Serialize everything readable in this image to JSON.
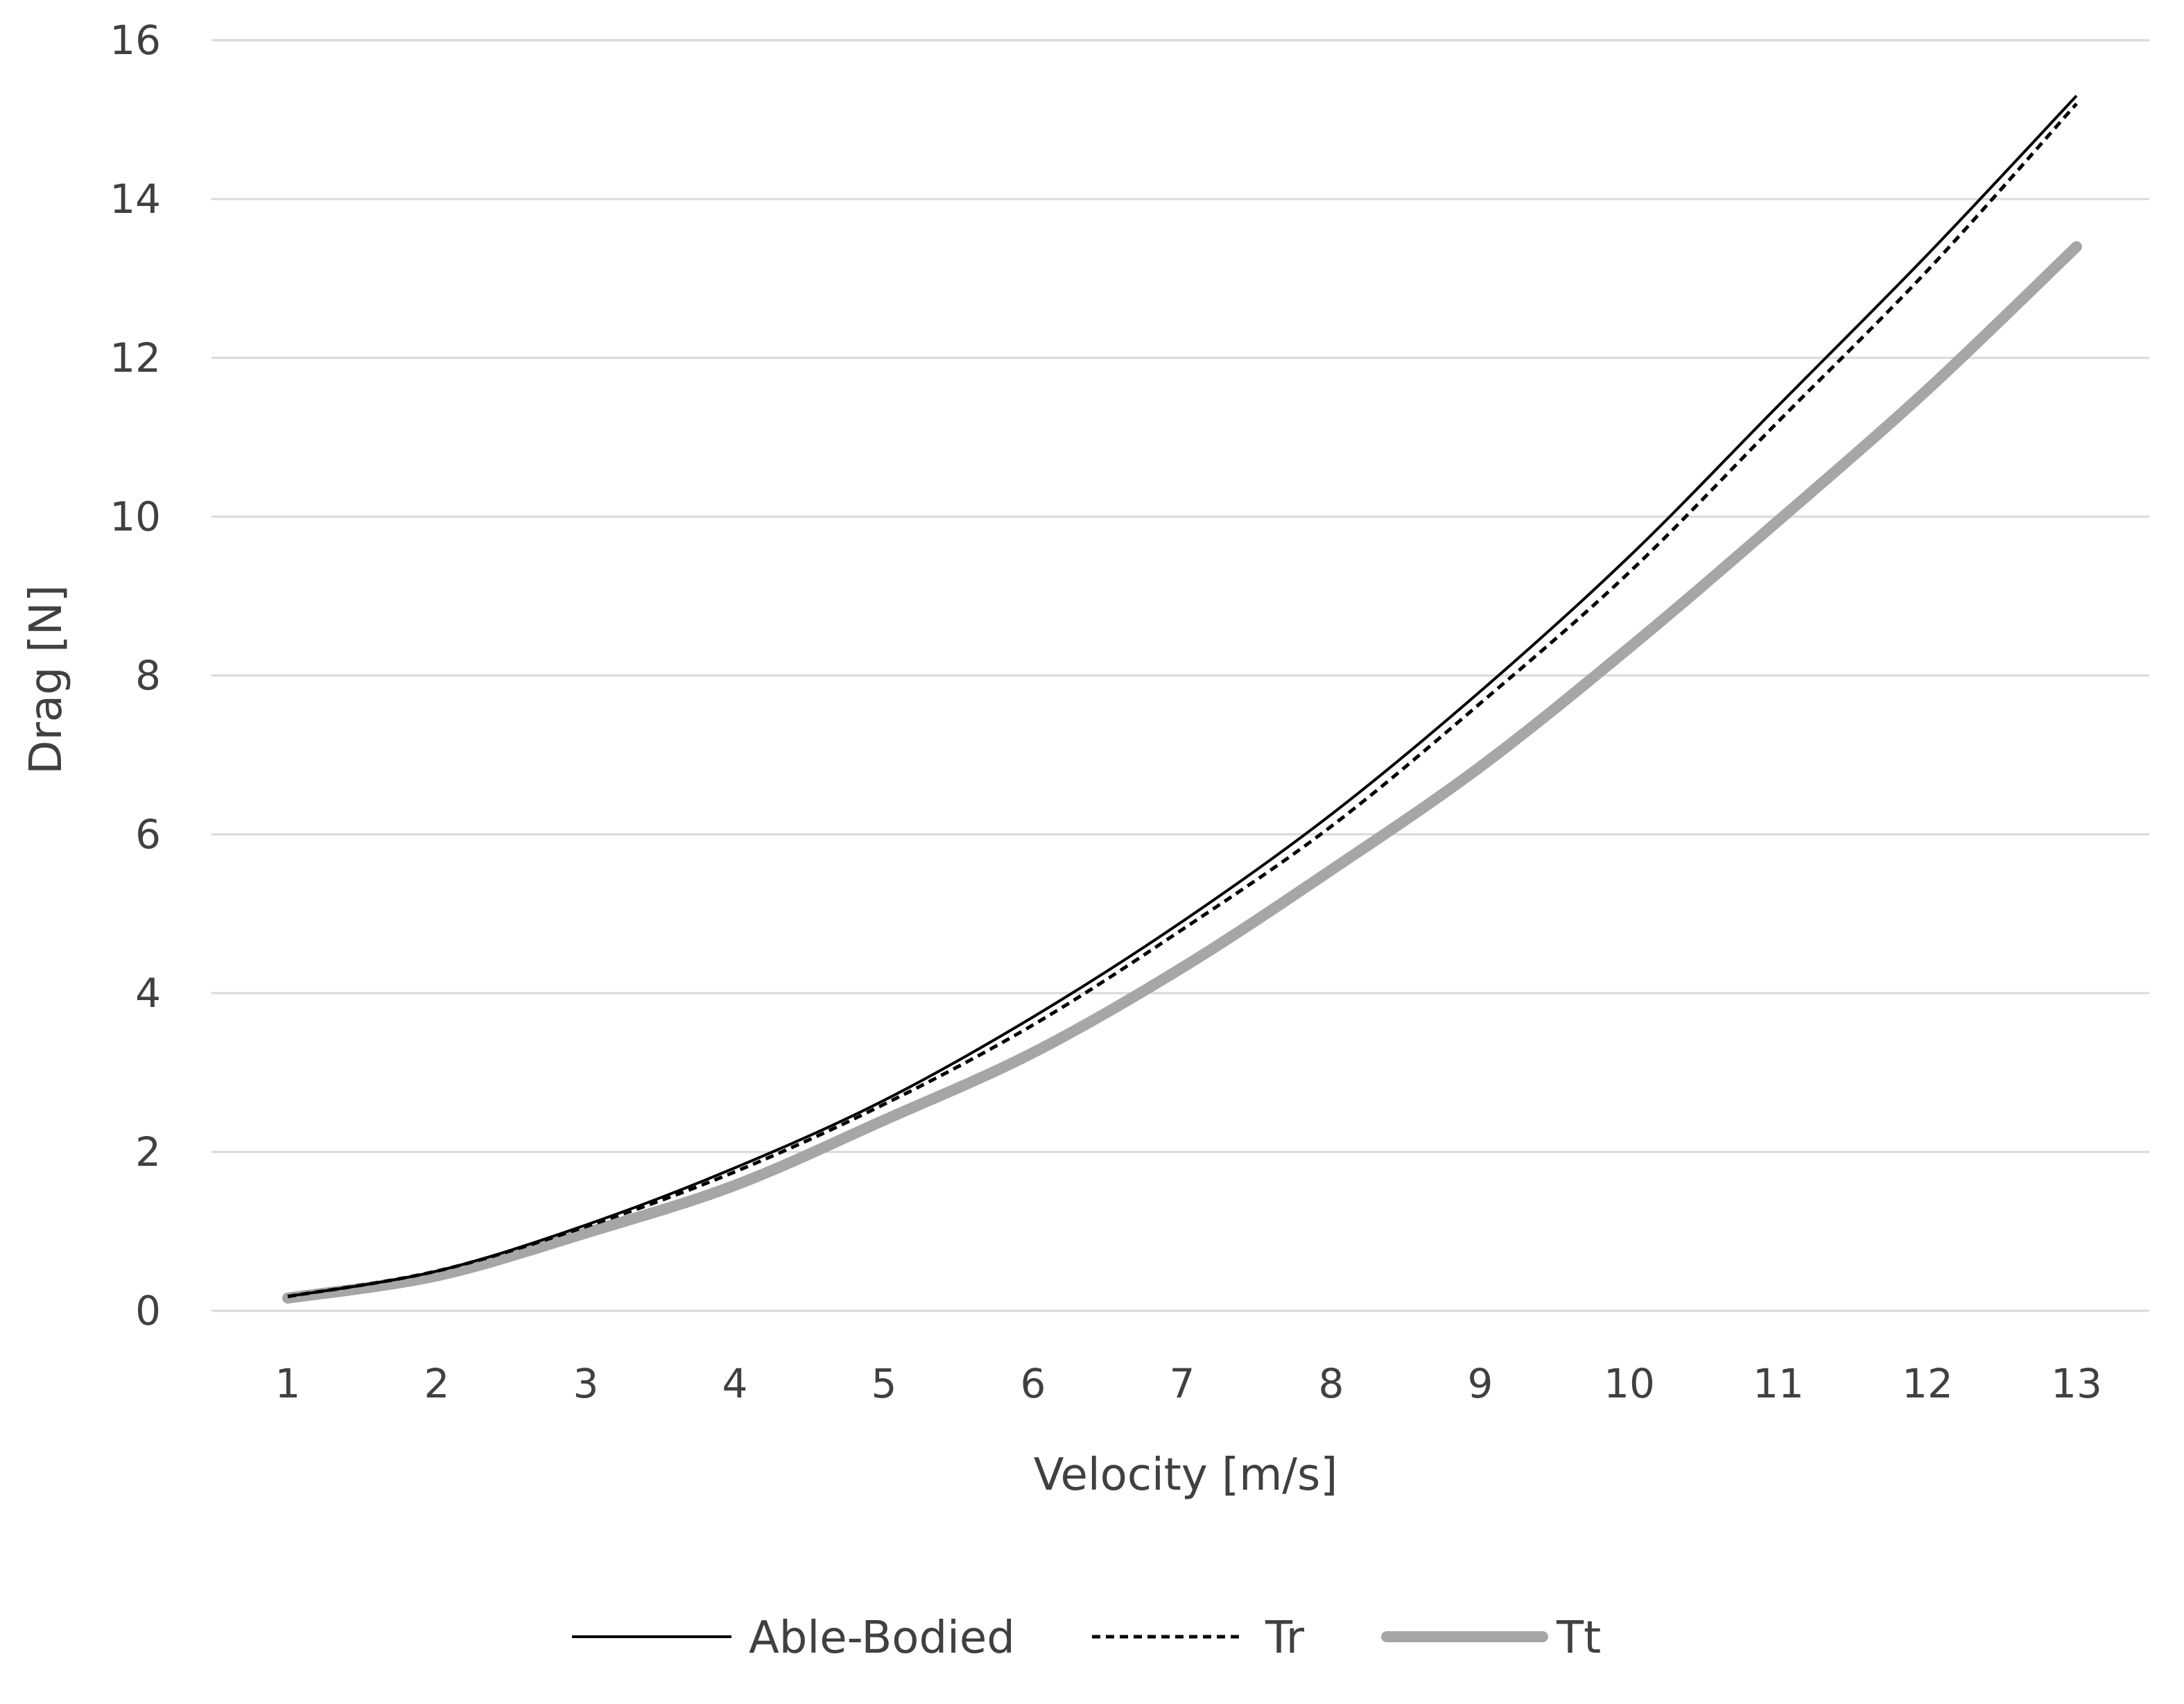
{
  "chart_data": {
    "type": "line",
    "title": "",
    "xlabel": "Velocity [m/s]",
    "ylabel": "Drag [N]",
    "x": [
      1,
      2,
      3,
      4,
      5,
      6,
      7,
      8,
      9,
      10,
      11,
      12,
      13
    ],
    "x_tick_labels": [
      "1",
      "2",
      "3",
      "4",
      "5",
      "6",
      "7",
      "8",
      "9",
      "10",
      "11",
      "12",
      "13"
    ],
    "y_tick_labels": [
      "0",
      "2",
      "4",
      "6",
      "8",
      "10",
      "12",
      "14",
      "16"
    ],
    "ylim": [
      0,
      16
    ],
    "grid": "horizontal",
    "legend_position": "bottom",
    "series": [
      {
        "name": "Able-Bodied",
        "values": [
          0.18,
          0.5,
          1.08,
          1.8,
          2.65,
          3.7,
          4.9,
          6.25,
          7.8,
          9.5,
          11.4,
          13.3,
          15.3
        ],
        "color": "#000000",
        "style": "solid-thin"
      },
      {
        "name": "Tr",
        "values": [
          0.18,
          0.5,
          1.06,
          1.75,
          2.6,
          3.6,
          4.8,
          6.1,
          7.65,
          9.3,
          11.2,
          13.1,
          15.2
        ],
        "color": "#000000",
        "style": "dashed"
      },
      {
        "name": "Tt",
        "values": [
          0.16,
          0.44,
          0.98,
          1.58,
          2.4,
          3.25,
          4.32,
          5.55,
          6.85,
          8.35,
          9.95,
          11.6,
          13.4
        ],
        "color": "#a6a6a6",
        "style": "solid-thick"
      }
    ]
  }
}
